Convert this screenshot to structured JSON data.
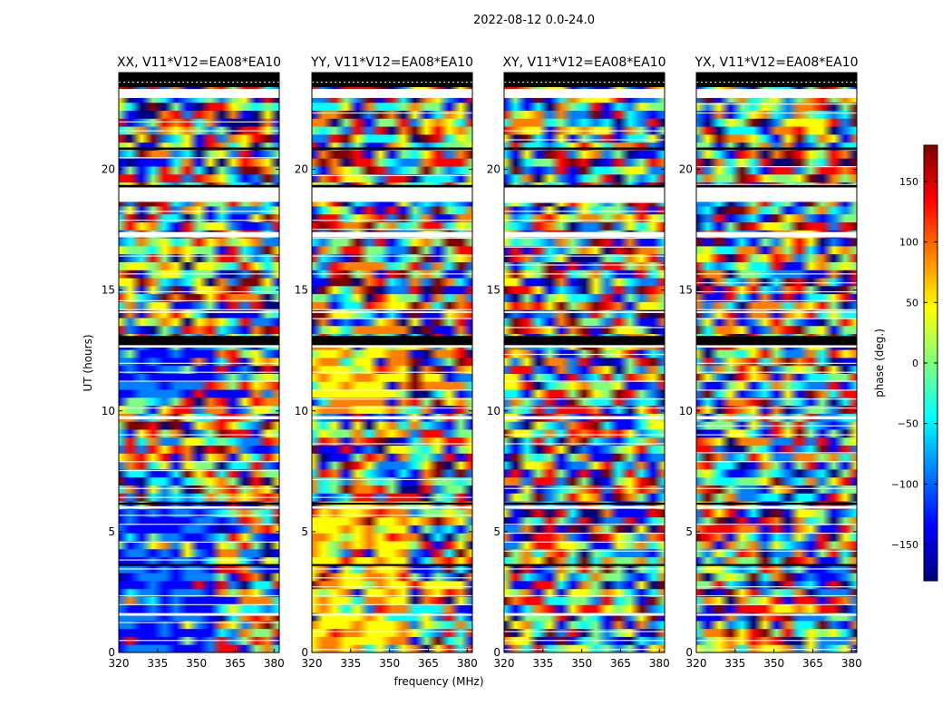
{
  "figure_title": "2022-08-12 0.0-24.0",
  "chart_data": {
    "type": "heatmap",
    "title": "2022-08-12 0.0-24.0",
    "xlabel": "frequency (MHz)",
    "ylabel": "UT (hours)",
    "xlim": [
      320,
      382
    ],
    "ylim": [
      0,
      24
    ],
    "xticks": [
      320,
      335,
      350,
      365,
      380
    ],
    "yticks": [
      0,
      5,
      10,
      15,
      20
    ],
    "colorbar": {
      "label": "phase (deg.)",
      "range": [
        -180,
        180
      ],
      "ticks": [
        150,
        100,
        50,
        0,
        -50,
        -100,
        -150
      ],
      "tick_labels": [
        "150",
        "100",
        "50",
        "0",
        "−50",
        "−100",
        "−150"
      ],
      "colormap": "jet",
      "colors": [
        "#00007f",
        "#0000ff",
        "#007fff",
        "#00ffff",
        "#7fff7f",
        "#ffff00",
        "#ff7f00",
        "#ff0000",
        "#7f0000"
      ]
    },
    "panels": [
      {
        "title": "XX, V11*V12=EA08*EA10",
        "polarization": "XX"
      },
      {
        "title": "YY, V11*V12=EA08*EA10",
        "polarization": "YY"
      },
      {
        "title": "XY, V11*V12=EA08*EA10",
        "polarization": "XY"
      },
      {
        "title": "YX, V11*V12=EA08*EA10",
        "polarization": "YX"
      }
    ],
    "flagged_gaps_hours": [
      [
        18.65,
        19.25
      ],
      [
        12.62,
        12.72
      ],
      [
        9.65,
        9.78
      ],
      [
        22.95,
        23.32
      ],
      [
        17.18,
        17.4
      ],
      [
        1.52,
        1.6
      ],
      [
        14.05,
        14.12
      ],
      [
        5.95,
        6.05
      ]
    ],
    "black_bands_hours": [
      [
        12.72,
        13.1
      ],
      [
        23.4,
        24.0
      ],
      [
        19.25,
        19.35
      ],
      [
        20.8,
        20.9
      ],
      [
        3.58,
        3.66
      ],
      [
        6.12,
        6.2
      ]
    ]
  }
}
